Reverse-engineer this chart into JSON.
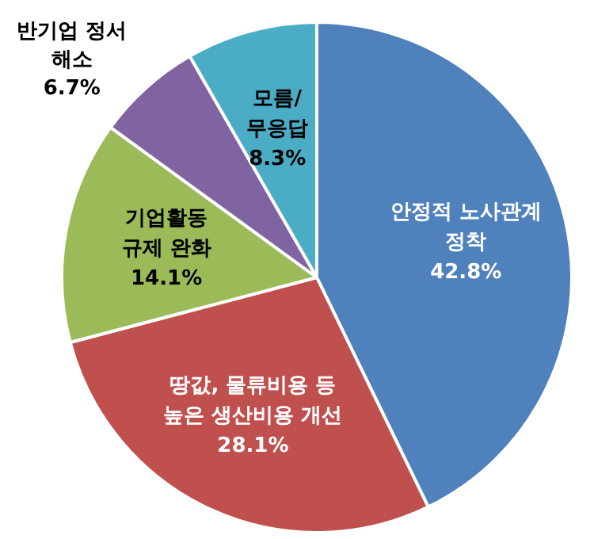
{
  "chart_data": {
    "type": "pie",
    "categories": [
      "안정적 노사관계\n정착",
      "땅값, 물류비용 등\n높은 생산비용 개선",
      "기업활동\n규제 완화",
      "반기업 정서\n해소",
      "모름/\n무응답"
    ],
    "values": [
      42.8,
      28.1,
      14.1,
      6.7,
      8.3
    ],
    "colors": [
      "#4f81bd",
      "#c0504d",
      "#9bbb59",
      "#8064a2",
      "#4bacc6"
    ],
    "value_labels": [
      "42.8%",
      "28.1%",
      "14.1%",
      "6.7%",
      "8.3%"
    ]
  }
}
